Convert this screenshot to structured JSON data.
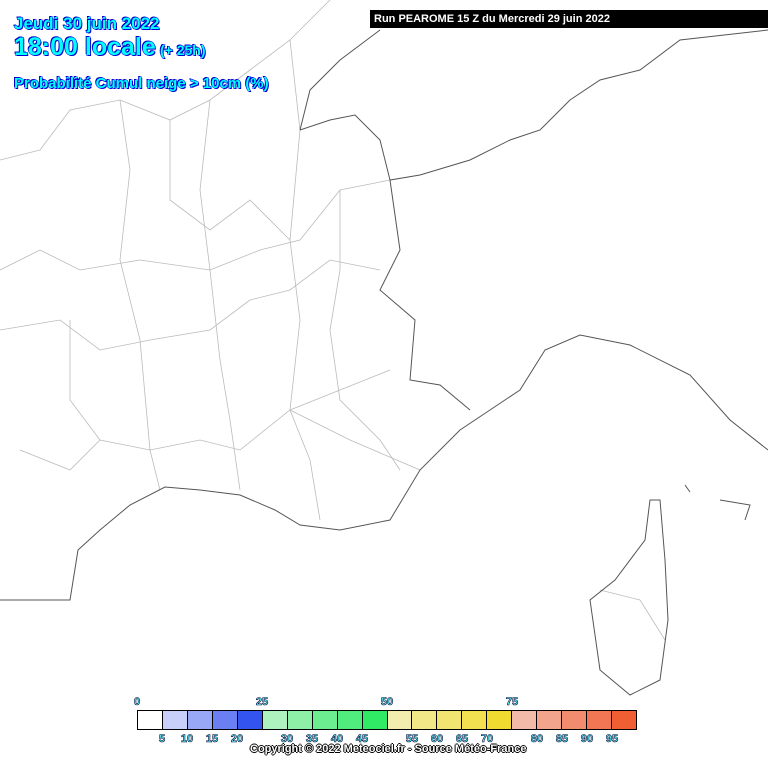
{
  "header": {
    "date": "Jeudi 30 juin 2022",
    "time": "18:00 locale",
    "lead": "(+ 25h)",
    "parameter": "Probabilité Cumul neige > 10cm (%)"
  },
  "run_banner": "Run PEAROME 15 Z du Mercredi 29 juin 2022",
  "legend": {
    "top_labels": [
      "0",
      "25",
      "50",
      "75"
    ],
    "bottom_labels": [
      "5",
      "10",
      "15",
      "20",
      "30",
      "35",
      "40",
      "45",
      "55",
      "60",
      "65",
      "70",
      "80",
      "85",
      "90",
      "95"
    ],
    "colors": [
      "#ffffff",
      "#c8d0fa",
      "#98a8f6",
      "#6a80f2",
      "#3454f0",
      "#aef2c0",
      "#8ef0a6",
      "#6cee90",
      "#50ec7e",
      "#30ea66",
      "#f2ecae",
      "#f2e888",
      "#f2e470",
      "#f2e050",
      "#f0dc30",
      "#f2baa8",
      "#f2a48c",
      "#f28c6e",
      "#f27654",
      "#f05e34"
    ]
  },
  "copyright": "Copyright © 2022 Meteociel.fr - Source Météo-France",
  "map": {
    "data_shown": "no probability areas visible"
  }
}
